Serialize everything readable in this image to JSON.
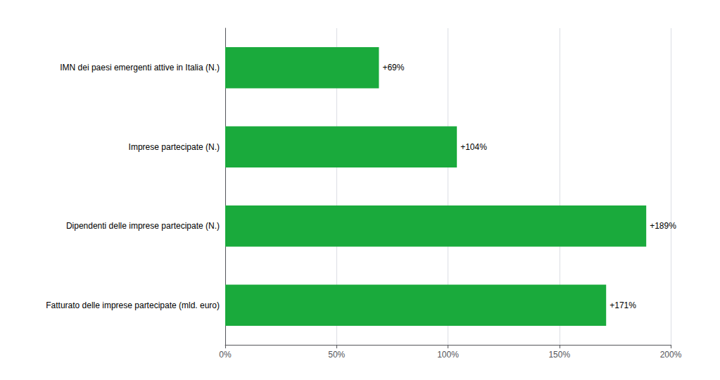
{
  "chart_data": {
    "type": "bar",
    "orientation": "horizontal",
    "categories": [
      "Fatturato delle imprese partecipate (mld. euro)",
      "Dipendenti delle imprese partecipate (N.)",
      "Imprese partecipate (N.)",
      "IMN dei paesi emergenti attive in Italia (N.)"
    ],
    "values": [
      1.71,
      1.89,
      1.04,
      0.69
    ],
    "value_labels": [
      "+171%",
      "+189%",
      "+104%",
      "+69%"
    ],
    "data_labels": true,
    "color": "#1aaa3c",
    "xlim": [
      0,
      2.0
    ],
    "xticks": [
      {
        "value": 0,
        "label": "0%"
      },
      {
        "value": 0.5,
        "label": "50%"
      },
      {
        "value": 1.0,
        "label": "100%"
      },
      {
        "value": 1.5,
        "label": "150%"
      },
      {
        "value": 2.0,
        "label": "200%"
      }
    ],
    "grid": true
  }
}
